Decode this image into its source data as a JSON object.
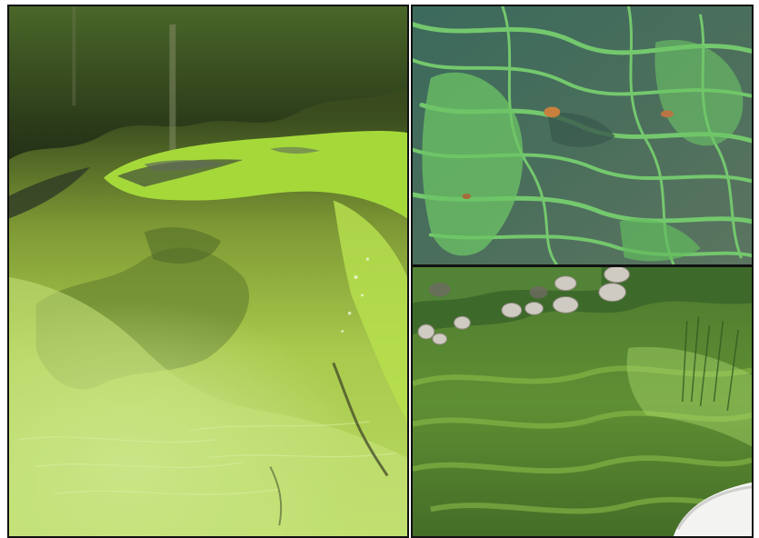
{
  "collage": {
    "panels": [
      {
        "id": "left",
        "subject": "lake-surface-with-algae-bloom"
      },
      {
        "id": "top-right",
        "subject": "algae-streaks-on-water"
      },
      {
        "id": "bottom-right",
        "subject": "shoreline-rocks-with-green-water"
      }
    ]
  },
  "colors": {
    "algae_bright": "#9fd63a",
    "algae_pale": "#c3e46f",
    "water_dark": "#2f3e1c",
    "teal_water": "#3f6f5a",
    "streak_green": "#6fc46a",
    "rock_grey": "#cfcac2",
    "border": "#111111"
  }
}
